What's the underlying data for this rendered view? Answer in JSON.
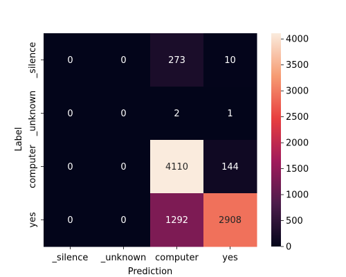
{
  "chart_data": {
    "type": "heatmap",
    "xlabel": "Prediction",
    "ylabel": "Label",
    "x_categories": [
      "_silence",
      "_unknown",
      "computer",
      "yes"
    ],
    "y_categories": [
      "_silence",
      "_unknown",
      "computer",
      "yes"
    ],
    "values": [
      [
        0,
        0,
        273,
        10
      ],
      [
        0,
        0,
        2,
        1
      ],
      [
        0,
        0,
        4110,
        144
      ],
      [
        0,
        0,
        1292,
        2908
      ]
    ],
    "colorbar": {
      "vmin": 0,
      "vmax": 4110,
      "ticks": [
        0,
        500,
        1000,
        1500,
        2000,
        2500,
        3000,
        3500,
        4000
      ]
    },
    "colormap": [
      "#03051a",
      "#4c1d4b",
      "#a11a5b",
      "#e83f3f",
      "#f69c73",
      "#faebdd"
    ]
  }
}
